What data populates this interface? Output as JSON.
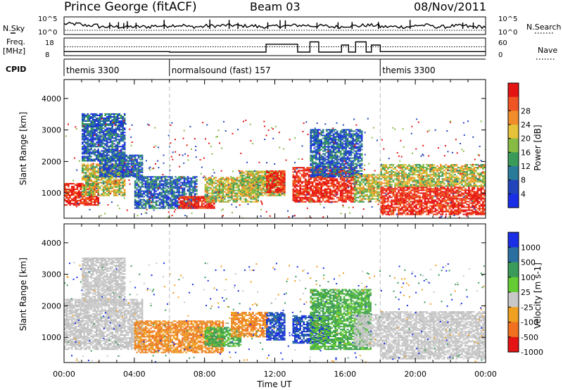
{
  "header": {
    "station": "Prince George (fitACF)",
    "beam": "Beam 03",
    "date": "08/Nov/2011"
  },
  "top_panels": {
    "nsky": {
      "label": "N.Sky",
      "ticks": [
        "10^5",
        "10^0"
      ],
      "right_ticks": [
        "10^5",
        "10^0"
      ],
      "right_label": "N.Search",
      "profile": [
        0.25,
        0.2,
        0.15,
        0.15,
        0.15,
        0.18,
        0.2,
        0.15,
        0.18,
        0.2,
        0.18,
        0.15,
        0.18,
        0.2,
        0.18,
        0.15,
        0.18,
        0.2,
        0.15,
        0.15,
        0.2,
        0.15,
        0.18,
        0.15
      ],
      "spikes": [
        2.6,
        3.1,
        3.4,
        3.6,
        4.1,
        5.7,
        8.3,
        9.4,
        9.9,
        11.6,
        12.3,
        12.6,
        14.4,
        15.6,
        16.4,
        17.9,
        19.7,
        22.7,
        23.3
      ]
    },
    "freq": {
      "label": "Freq.",
      "unit": "[MHz]",
      "ticks": [
        "18",
        "8"
      ],
      "right_ticks": [
        "60",
        "0"
      ],
      "right_label": "Nave",
      "steps": [
        {
          "t0": 0.0,
          "t1": 6.0,
          "mhz": 10.3
        },
        {
          "t0": 6.0,
          "t1": 11.5,
          "mhz": 10.0
        },
        {
          "t0": 11.5,
          "t1": 13.3,
          "mhz": 14.5
        },
        {
          "t0": 13.3,
          "t1": 14.0,
          "mhz": 10.0
        },
        {
          "t0": 14.0,
          "t1": 14.5,
          "mhz": 15.8
        },
        {
          "t0": 14.5,
          "t1": 15.8,
          "mhz": 10.0
        },
        {
          "t0": 15.8,
          "t1": 16.2,
          "mhz": 14.0
        },
        {
          "t0": 16.2,
          "t1": 16.6,
          "mhz": 10.0
        },
        {
          "t0": 16.6,
          "t1": 17.2,
          "mhz": 15.8
        },
        {
          "t0": 17.2,
          "t1": 17.5,
          "mhz": 10.0
        },
        {
          "t0": 17.5,
          "t1": 18.0,
          "mhz": 14.0
        },
        {
          "t0": 18.0,
          "t1": 24.0,
          "mhz": 10.3
        }
      ],
      "nave_level": 13.0
    },
    "cpid": {
      "label": "CPID",
      "segments": [
        {
          "t0": 0.0,
          "t1": 6.0,
          "name": "themis 3300"
        },
        {
          "t0": 6.0,
          "t1": 18.0,
          "name": "normalsound (fast) 157"
        },
        {
          "t0": 18.0,
          "t1": 24.0,
          "name": "themis 3300"
        }
      ]
    }
  },
  "chart_data": [
    {
      "type": "heatmap",
      "title": "",
      "xlabel": "",
      "ylabel": "Slant Range [km]",
      "xlim": [
        0,
        24
      ],
      "ylim": [
        200,
        4600
      ],
      "yticks": [
        "1000",
        "2000",
        "3000",
        "4000"
      ],
      "colorbar": {
        "label": "Power [dB]",
        "ticks": [
          "4",
          "8",
          "12",
          "16",
          "20",
          "24",
          "28"
        ],
        "colors": [
          "#1a2ee6",
          "#2244bb",
          "#2a7a9a",
          "#3a9a5a",
          "#88bb44",
          "#e6c23a",
          "#f08c2a",
          "#ee5522",
          "#e51414"
        ]
      },
      "regions": [
        {
          "t0": 0.0,
          "t1": 2.0,
          "r0": 600,
          "r1": 1300,
          "level": "high"
        },
        {
          "t0": 1.0,
          "t1": 3.5,
          "r0": 900,
          "r1": 1900,
          "level": "mid"
        },
        {
          "t0": 2.0,
          "t1": 4.5,
          "r0": 1500,
          "r1": 2200,
          "level": "low"
        },
        {
          "t0": 1.0,
          "t1": 3.5,
          "r0": 2000,
          "r1": 3500,
          "level": "low"
        },
        {
          "t0": 4.0,
          "t1": 7.5,
          "r0": 500,
          "r1": 1500,
          "level": "low"
        },
        {
          "t0": 6.5,
          "t1": 8.5,
          "r0": 500,
          "r1": 900,
          "level": "high"
        },
        {
          "t0": 8.0,
          "t1": 11.0,
          "r0": 700,
          "r1": 1500,
          "level": "mid"
        },
        {
          "t0": 10.0,
          "t1": 12.5,
          "r0": 900,
          "r1": 1700,
          "level": "mid"
        },
        {
          "t0": 11.5,
          "t1": 12.5,
          "r0": 1000,
          "r1": 1700,
          "level": "high"
        },
        {
          "t0": 13.0,
          "t1": 16.5,
          "r0": 700,
          "r1": 1800,
          "level": "high"
        },
        {
          "t0": 14.0,
          "t1": 17.0,
          "r0": 1500,
          "r1": 3000,
          "level": "low"
        },
        {
          "t0": 16.5,
          "t1": 18.0,
          "r0": 700,
          "r1": 1600,
          "level": "mid"
        },
        {
          "t0": 18.0,
          "t1": 24.0,
          "r0": 300,
          "r1": 1200,
          "level": "high"
        },
        {
          "t0": 18.0,
          "t1": 24.0,
          "r0": 1200,
          "r1": 1900,
          "level": "mid"
        }
      ]
    },
    {
      "type": "heatmap",
      "title": "",
      "xlabel": "Time UT",
      "ylabel": "Slant Range [km]",
      "xlim": [
        0,
        24
      ],
      "ylim": [
        200,
        4600
      ],
      "yticks": [
        "1000",
        "2000",
        "3000",
        "4000"
      ],
      "xticks": [
        "00:00",
        "04:00",
        "08:00",
        "12:00",
        "16:00",
        "20:00",
        "00:00"
      ],
      "colorbar": {
        "label": "Velocity [m s-1]",
        "ticks": [
          "1000",
          "500",
          "100",
          "25",
          "-25",
          "-100",
          "-500",
          "-1000"
        ],
        "colors": [
          "#1a2ee6",
          "#2a6fa0",
          "#3a9a5a",
          "#66cc33",
          "#c8c8c8",
          "#f0a020",
          "#f07020",
          "#e51414"
        ]
      },
      "regions": [
        {
          "t0": 0.0,
          "t1": 4.5,
          "r0": 600,
          "r1": 2200,
          "level": "grey"
        },
        {
          "t0": 1.0,
          "t1": 3.5,
          "r0": 2000,
          "r1": 3500,
          "level": "grey"
        },
        {
          "t0": 4.0,
          "t1": 9.0,
          "r0": 500,
          "r1": 1500,
          "level": "orange"
        },
        {
          "t0": 8.0,
          "t1": 10.0,
          "r0": 700,
          "r1": 1300,
          "level": "green"
        },
        {
          "t0": 9.5,
          "t1": 11.5,
          "r0": 1000,
          "r1": 1800,
          "level": "orange"
        },
        {
          "t0": 11.5,
          "t1": 12.5,
          "r0": 900,
          "r1": 1800,
          "level": "blue"
        },
        {
          "t0": 13.0,
          "t1": 15.0,
          "r0": 800,
          "r1": 1700,
          "level": "blue"
        },
        {
          "t0": 14.0,
          "t1": 17.5,
          "r0": 600,
          "r1": 2500,
          "level": "green"
        },
        {
          "t0": 16.5,
          "t1": 18.0,
          "r0": 700,
          "r1": 1700,
          "level": "grey"
        },
        {
          "t0": 18.0,
          "t1": 24.0,
          "r0": 300,
          "r1": 1800,
          "level": "grey"
        }
      ]
    }
  ]
}
